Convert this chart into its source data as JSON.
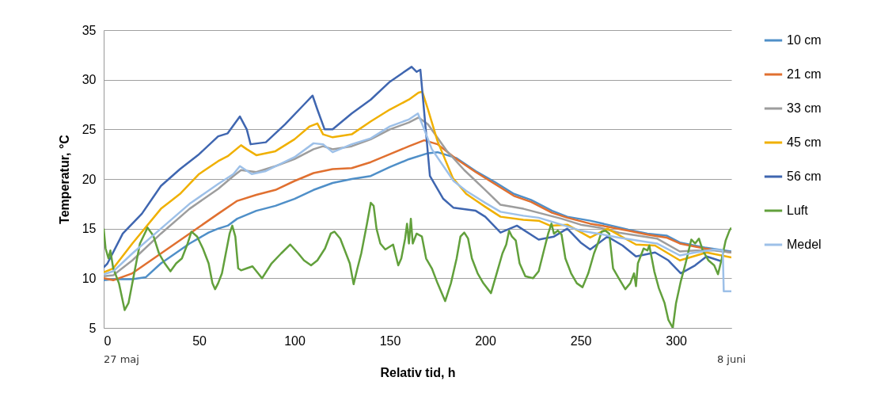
{
  "chart_data": {
    "type": "line",
    "xlabel": "Relativ tid, h",
    "ylabel": "Temperatur, °C",
    "xlim": [
      0,
      329
    ],
    "xticks": [
      0,
      50,
      100,
      150,
      200,
      250,
      300
    ],
    "ylim": [
      5,
      35
    ],
    "yticks": [
      5,
      10,
      15,
      20,
      25,
      30,
      35
    ],
    "grid": "y",
    "legend": "right",
    "marker": "none",
    "line_style": "solid",
    "annotations": [
      "27 maj",
      "8 juni"
    ],
    "series": [
      {
        "name": "10 cm",
        "color": "#4f8fc8",
        "x": [
          0,
          5,
          15,
          22,
          30,
          45,
          55,
          60,
          65,
          70,
          80,
          90,
          100,
          110,
          120,
          130,
          140,
          150,
          160,
          170,
          175,
          185,
          195,
          205,
          215,
          224,
          235,
          243,
          255,
          264,
          275,
          285,
          295,
          302,
          315,
          329
        ],
        "values": [
          9.8,
          9.9,
          9.9,
          10.1,
          11.5,
          13.5,
          14.6,
          15,
          15.3,
          16,
          16.8,
          17.3,
          18,
          18.9,
          19.6,
          20,
          20.3,
          21.2,
          22,
          22.6,
          22.7,
          22.1,
          20.8,
          19.7,
          18.5,
          17.9,
          16.8,
          16.2,
          15.8,
          15.4,
          14.9,
          14.5,
          14.3,
          13.6,
          13.1,
          12.7
        ]
      },
      {
        "name": "21 cm",
        "color": "#e07030",
        "x": [
          0,
          5,
          15,
          30,
          45,
          60,
          70,
          80,
          90,
          100,
          110,
          120,
          130,
          140,
          150,
          160,
          168,
          175,
          185,
          195,
          205,
          215,
          224,
          235,
          243,
          255,
          264,
          275,
          285,
          295,
          302,
          315,
          329
        ],
        "values": [
          10,
          9.8,
          10.5,
          12.5,
          14.5,
          16.5,
          17.8,
          18.4,
          18.9,
          19.8,
          20.6,
          21,
          21.1,
          21.7,
          22.5,
          23.3,
          23.9,
          23.5,
          22,
          20.7,
          19.5,
          18.3,
          17.7,
          16.6,
          16.1,
          15.5,
          15.2,
          14.8,
          14.4,
          14.1,
          13.5,
          13,
          12.6
        ]
      },
      {
        "name": "33 cm",
        "color": "#9d9d9d",
        "x": [
          0,
          5,
          15,
          30,
          45,
          60,
          68,
          72,
          80,
          90,
          100,
          110,
          115,
          120,
          130,
          140,
          150,
          160,
          165,
          170,
          180,
          189,
          200,
          208,
          220,
          228,
          240,
          250,
          260,
          270,
          280,
          290,
          302,
          310,
          320,
          329
        ],
        "values": [
          10.2,
          10.3,
          11.8,
          14.5,
          17,
          19,
          20.3,
          20.9,
          20.7,
          21.3,
          22,
          23,
          23.3,
          23,
          23.3,
          24,
          25,
          25.7,
          26.2,
          25.5,
          22.8,
          20.9,
          18.9,
          17.4,
          17,
          16.6,
          16,
          15.4,
          15.1,
          14.6,
          14.3,
          14,
          12.7,
          12.8,
          12.8,
          12.6
        ]
      },
      {
        "name": "45 cm",
        "color": "#f0b000",
        "x": [
          0,
          5,
          15,
          30,
          40,
          50,
          60,
          65,
          72,
          75,
          80,
          90,
          100,
          108,
          112,
          115,
          120,
          130,
          140,
          150,
          160,
          165,
          167,
          170,
          175,
          183,
          190,
          200,
          208,
          220,
          228,
          234,
          243,
          255,
          264,
          279,
          289,
          302,
          316,
          329
        ],
        "values": [
          10.6,
          11,
          13.5,
          17,
          18.5,
          20.5,
          21.8,
          22.3,
          23.4,
          23,
          22.4,
          22.8,
          24,
          25.3,
          25.6,
          24.5,
          24.2,
          24.5,
          25.8,
          27,
          28,
          28.7,
          28.8,
          27,
          23.8,
          20.1,
          18.5,
          17.2,
          16.2,
          15.9,
          15.8,
          15.3,
          15.4,
          14.1,
          15,
          13.4,
          13.3,
          11.8,
          12.6,
          12.1
        ]
      },
      {
        "name": "56 cm",
        "color": "#3f66b0",
        "x": [
          0,
          2,
          10,
          20,
          30,
          40,
          50,
          60,
          65,
          71.4,
          75,
          77,
          85,
          95,
          105,
          109.5,
          112,
          115.8,
          120,
          130,
          140,
          150,
          161.4,
          164,
          166,
          171,
          178,
          183.4,
          195,
          200,
          208,
          216.6,
          228,
          236,
          243,
          250,
          255,
          264,
          272,
          279,
          289,
          296,
          302.5,
          310,
          316,
          324
        ],
        "values": [
          11.1,
          11.5,
          14.5,
          16.5,
          19.3,
          21,
          22.5,
          24.3,
          24.6,
          26.3,
          25,
          23.5,
          23.7,
          25.5,
          27.5,
          28.4,
          27,
          25,
          25,
          26.6,
          28,
          29.8,
          31.3,
          30.8,
          31,
          20.3,
          18,
          17.1,
          16.8,
          16.2,
          14.6,
          15.3,
          13.9,
          14.2,
          15,
          13.6,
          12.9,
          14.2,
          13.3,
          12.2,
          12.6,
          11.8,
          10.5,
          11.3,
          12.2,
          11.7
        ]
      },
      {
        "name": "Luft",
        "color": "#62a03c",
        "x": [
          0,
          1,
          2.5,
          3.5,
          5,
          8,
          11,
          13,
          16,
          19,
          21,
          23,
          26,
          29,
          32,
          35,
          38,
          41,
          44,
          46,
          49,
          52,
          55,
          57,
          58.4,
          60,
          62,
          64,
          66,
          67.4,
          69,
          70.5,
          72,
          75,
          78,
          83,
          88,
          93,
          97.8,
          102,
          105,
          108.7,
          112,
          116,
          119,
          121,
          124,
          127,
          129,
          131,
          133,
          135,
          138,
          140,
          141.5,
          143,
          145,
          147.6,
          151.7,
          154.4,
          156,
          158,
          159,
          160,
          161,
          162,
          164,
          166.8,
          169,
          172,
          175,
          179,
          182,
          185,
          187,
          189,
          191,
          193,
          196,
          199,
          203,
          206,
          209,
          211,
          212.5,
          214,
          216,
          218,
          221,
          225,
          228,
          231,
          233,
          234.7,
          236,
          238,
          240,
          242,
          245,
          248,
          251,
          254,
          257,
          259,
          261,
          263,
          265,
          267,
          270,
          273.4,
          276,
          278,
          279,
          280,
          281,
          283,
          285,
          286,
          288.6,
          291,
          294,
          296,
          298.3,
          300,
          302.5,
          305,
          308,
          310,
          312,
          314,
          317,
          320,
          322,
          324,
          326,
          328,
          329
        ],
        "values": [
          15,
          13,
          12,
          12.8,
          11,
          9.5,
          6.8,
          7.5,
          10.5,
          13.5,
          14.3,
          15.1,
          14.3,
          12.5,
          11.5,
          10.7,
          11.5,
          12,
          13.5,
          14.7,
          14.2,
          13,
          11.5,
          9.5,
          8.9,
          9.5,
          10.5,
          12.5,
          14.5,
          15.3,
          14.2,
          11,
          10.8,
          11,
          11.2,
          10,
          11.5,
          12.5,
          13.4,
          12.5,
          11.8,
          11.3,
          11.8,
          13,
          14.5,
          14.7,
          14,
          12.5,
          11.5,
          9.4,
          11,
          12.5,
          15.5,
          17.6,
          17.3,
          15,
          13.5,
          12.9,
          13.4,
          11.3,
          12,
          14,
          15.5,
          13.5,
          16,
          13.5,
          14.5,
          14.2,
          12,
          11,
          9.5,
          7.7,
          9.5,
          12,
          14.2,
          14.6,
          14,
          12,
          10.5,
          9.5,
          8.5,
          10.5,
          12.5,
          13.4,
          14.8,
          14.2,
          13.8,
          11.5,
          10.2,
          10,
          10.7,
          13,
          14.5,
          15.5,
          14.5,
          14.8,
          14.4,
          12,
          10.5,
          9.5,
          9.1,
          10.5,
          12.5,
          13.5,
          14.7,
          14.8,
          14.5,
          11,
          10,
          8.9,
          9.5,
          10.5,
          9.2,
          11.5,
          12,
          13,
          12.8,
          13.3,
          10.7,
          9,
          7.5,
          5.8,
          5,
          7.5,
          9.7,
          11.5,
          13.9,
          13.5,
          14,
          12.8,
          11.8,
          11.3,
          10.4,
          12,
          13.8,
          14.8,
          15.1
        ]
      },
      {
        "name": "Medel",
        "color": "#9dc0e8",
        "x": [
          0,
          5,
          15,
          30,
          45,
          60,
          68,
          71.4,
          77.6,
          85,
          100,
          110,
          115,
          120,
          130,
          140,
          150,
          160,
          164.7,
          168,
          172,
          183.4,
          190,
          200,
          208,
          220,
          228,
          240,
          250,
          259,
          270,
          280,
          290,
          302,
          310,
          320,
          324.5,
          325,
          329
        ],
        "values": [
          10.4,
          10.7,
          12.5,
          15,
          17.5,
          19.5,
          20.5,
          21.3,
          20.5,
          20.8,
          22.2,
          23.6,
          23.5,
          22.7,
          23.5,
          24.1,
          25.3,
          26,
          26.6,
          25,
          23,
          19.8,
          18.8,
          17.6,
          16.7,
          16.3,
          16.1,
          15.4,
          14.8,
          14.5,
          14.1,
          13.8,
          13.5,
          12.3,
          12.6,
          12.9,
          12.8,
          8.7,
          8.7
        ]
      }
    ]
  }
}
